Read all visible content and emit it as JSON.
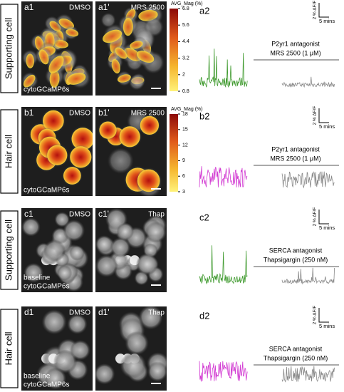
{
  "rows": [
    {
      "cell_type": "Supporting cell",
      "panels": [
        {
          "label": "a1",
          "condition": "DMSO",
          "caption": [
            "cytoGCaMP6s"
          ]
        },
        {
          "label": "a1'",
          "condition": "MRS 2500"
        }
      ],
      "colorbar": {
        "title": "AVG_Mag (%)",
        "ticks": [
          6.8,
          5.6,
          4.4,
          3.2,
          2,
          0.8
        ]
      },
      "trace_label": "a2",
      "scale": {
        "y": "2 % ΔF/F",
        "x": "5 mins"
      },
      "drug": {
        "class": "P2yr1 antagonist",
        "name": "MRS 2500 (1 μM)"
      }
    },
    {
      "cell_type": "Hair cell",
      "panels": [
        {
          "label": "b1",
          "condition": "DMSO",
          "caption": [
            "cytoGCaMP6s"
          ]
        },
        {
          "label": "b1'",
          "condition": "MRS 2500"
        }
      ],
      "colorbar": {
        "title": "AVG_Mag (%)",
        "ticks": [
          18,
          15,
          12,
          9,
          6,
          3
        ]
      },
      "trace_label": "b2",
      "scale": {
        "y": "2 % ΔF/F",
        "x": "5 mins"
      },
      "drug": {
        "class": "P2yr1 antagonist",
        "name": "MRS 2500 (1 μM)"
      }
    },
    {
      "cell_type": "Supporting cell",
      "panels": [
        {
          "label": "c1",
          "condition": "DMSO",
          "caption": [
            "baseline",
            "cytoGCaMP6s"
          ]
        },
        {
          "label": "c1'",
          "condition": "Thap"
        }
      ],
      "trace_label": "c2",
      "scale": {
        "y": "2 % ΔF/F",
        "x": "5 mins"
      },
      "drug": {
        "class": "SERCA antagonist",
        "name": "Thapsigargin (250 nM)"
      }
    },
    {
      "cell_type": "Hair cell",
      "panels": [
        {
          "label": "d1",
          "condition": "DMSO",
          "caption": [
            "baseline",
            "cytoGCaMP6s"
          ]
        },
        {
          "label": "d1'",
          "condition": "Thap"
        }
      ],
      "trace_label": "d2",
      "scale": {
        "y": "2 % ΔF/F",
        "x": "5 mins"
      },
      "drug": {
        "class": "SERCA antagonist",
        "name": "Thapsigargin (250 nM)"
      }
    }
  ]
}
